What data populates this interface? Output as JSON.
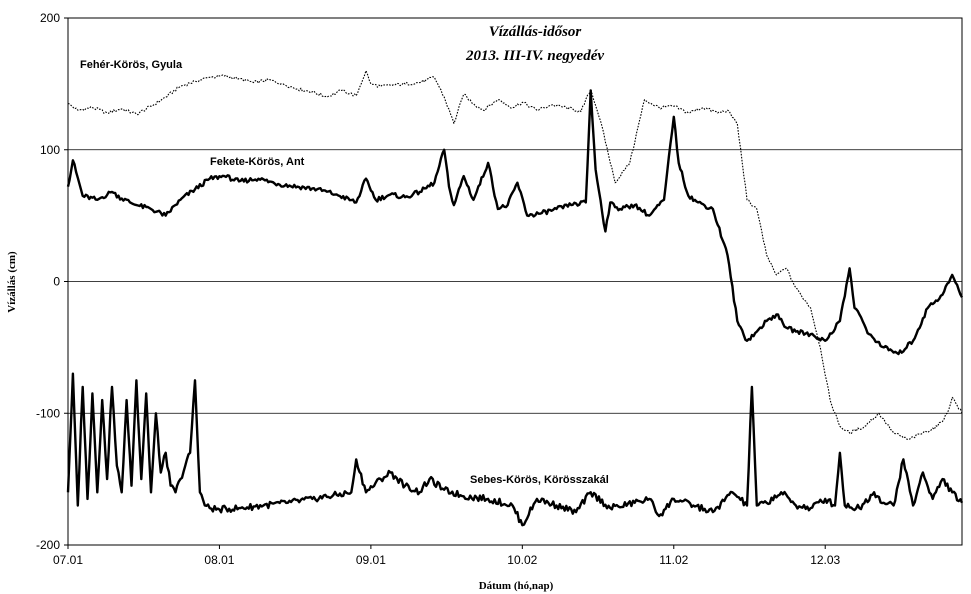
{
  "chart_data": {
    "type": "line",
    "title": "Vízállás-idősor",
    "subtitle": "2013. III-IV. negyedév",
    "xlabel": "Dátum (hó,nap)",
    "ylabel": "Vízállás (cm)",
    "ylim": [
      -200,
      200
    ],
    "yticks": [
      -200,
      -100,
      0,
      100,
      200
    ],
    "ytick_labels": [
      "-200",
      "-100",
      "0",
      "100",
      "200"
    ],
    "xlim": [
      "2013-07-01",
      "2013-12-31"
    ],
    "xticks": [
      "2013-07-01",
      "2013-08-01",
      "2013-09-01",
      "2013-10-02",
      "2013-11-02",
      "2013-12-03"
    ],
    "xtick_labels": [
      "07.01",
      "08.01",
      "09.01",
      "10.02",
      "11.02",
      "12.03"
    ],
    "grid": "horizontal",
    "series": [
      {
        "name": "Fehér-Körös, Gyula",
        "style": "dotted",
        "x": [
          "2013-07-01",
          "2013-07-03",
          "2013-07-06",
          "2013-07-09",
          "2013-07-12",
          "2013-07-15",
          "2013-07-18",
          "2013-07-21",
          "2013-07-24",
          "2013-07-27",
          "2013-07-30",
          "2013-08-02",
          "2013-08-05",
          "2013-08-08",
          "2013-08-11",
          "2013-08-14",
          "2013-08-17",
          "2013-08-20",
          "2013-08-23",
          "2013-08-26",
          "2013-08-29",
          "2013-08-31",
          "2013-09-01",
          "2013-09-03",
          "2013-09-05",
          "2013-09-08",
          "2013-09-11",
          "2013-09-14",
          "2013-09-16",
          "2013-09-18",
          "2013-09-20",
          "2013-09-22",
          "2013-09-24",
          "2013-09-27",
          "2013-09-30",
          "2013-10-02",
          "2013-10-05",
          "2013-10-08",
          "2013-10-11",
          "2013-10-14",
          "2013-10-16",
          "2013-10-18",
          "2013-10-21",
          "2013-10-24",
          "2013-10-27",
          "2013-10-30",
          "2013-11-02",
          "2013-11-05",
          "2013-11-08",
          "2013-11-11",
          "2013-11-13",
          "2013-11-15",
          "2013-11-17",
          "2013-11-19",
          "2013-11-21",
          "2013-11-23",
          "2013-11-25",
          "2013-11-27",
          "2013-11-30",
          "2013-12-02",
          "2013-12-04",
          "2013-12-06",
          "2013-12-08",
          "2013-12-11",
          "2013-12-14",
          "2013-12-17",
          "2013-12-20",
          "2013-12-23",
          "2013-12-26",
          "2013-12-28",
          "2013-12-29",
          "2013-12-31"
        ],
        "y": [
          135,
          130,
          132,
          128,
          131,
          127,
          133,
          140,
          148,
          152,
          155,
          156,
          154,
          151,
          153,
          150,
          146,
          144,
          140,
          145,
          141,
          160,
          150,
          148,
          149,
          150,
          151,
          155,
          140,
          120,
          142,
          135,
          130,
          138,
          132,
          136,
          130,
          134,
          132,
          129,
          146,
          122,
          75,
          90,
          138,
          132,
          133,
          128,
          132,
          128,
          130,
          120,
          62,
          55,
          20,
          5,
          10,
          -5,
          -20,
          -50,
          -90,
          -110,
          -115,
          -110,
          -100,
          -115,
          -120,
          -115,
          -110,
          -100,
          -88,
          -100
        ]
      },
      {
        "name": "Fekete-Körös, Ant",
        "style": "thick",
        "x": [
          "2013-07-01",
          "2013-07-02",
          "2013-07-04",
          "2013-07-07",
          "2013-07-10",
          "2013-07-12",
          "2013-07-15",
          "2013-07-18",
          "2013-07-21",
          "2013-07-24",
          "2013-07-27",
          "2013-07-30",
          "2013-08-02",
          "2013-08-05",
          "2013-08-09",
          "2013-08-13",
          "2013-08-17",
          "2013-08-21",
          "2013-08-25",
          "2013-08-29",
          "2013-08-31",
          "2013-09-02",
          "2013-09-05",
          "2013-09-08",
          "2013-09-11",
          "2013-09-14",
          "2013-09-16",
          "2013-09-17",
          "2013-09-18",
          "2013-09-20",
          "2013-09-22",
          "2013-09-25",
          "2013-09-27",
          "2013-09-29",
          "2013-10-01",
          "2013-10-03",
          "2013-10-06",
          "2013-10-09",
          "2013-10-12",
          "2013-10-15",
          "2013-10-16",
          "2013-10-17",
          "2013-10-19",
          "2013-10-20",
          "2013-10-22",
          "2013-10-25",
          "2013-10-28",
          "2013-10-31",
          "2013-11-02",
          "2013-11-03",
          "2013-11-05",
          "2013-11-07",
          "2013-11-10",
          "2013-11-13",
          "2013-11-15",
          "2013-11-17",
          "2013-11-19",
          "2013-11-21",
          "2013-11-23",
          "2013-11-25",
          "2013-11-27",
          "2013-11-30",
          "2013-12-03",
          "2013-12-06",
          "2013-12-08",
          "2013-12-09",
          "2013-12-10",
          "2013-12-12",
          "2013-12-15",
          "2013-12-18",
          "2013-12-21",
          "2013-12-24",
          "2013-12-27",
          "2013-12-29",
          "2013-12-31"
        ],
        "y": [
          72,
          92,
          65,
          62,
          68,
          63,
          58,
          55,
          50,
          62,
          70,
          78,
          80,
          76,
          78,
          74,
          72,
          70,
          66,
          60,
          78,
          62,
          66,
          64,
          68,
          75,
          100,
          72,
          58,
          80,
          62,
          90,
          55,
          58,
          75,
          50,
          52,
          55,
          58,
          60,
          145,
          85,
          38,
          60,
          55,
          58,
          50,
          62,
          125,
          90,
          65,
          60,
          55,
          20,
          -30,
          -45,
          -38,
          -30,
          -25,
          -35,
          -38,
          -40,
          -45,
          -30,
          10,
          -20,
          -25,
          -40,
          -50,
          -55,
          -45,
          -20,
          -10,
          5,
          -12
        ]
      },
      {
        "name": "Sebes-Körös, Körösszakál",
        "style": "thick",
        "x": [
          "2013-07-01",
          "2013-07-02",
          "2013-07-03",
          "2013-07-04",
          "2013-07-05",
          "2013-07-06",
          "2013-07-07",
          "2013-07-08",
          "2013-07-09",
          "2013-07-10",
          "2013-07-11",
          "2013-07-12",
          "2013-07-13",
          "2013-07-14",
          "2013-07-15",
          "2013-07-16",
          "2013-07-17",
          "2013-07-18",
          "2013-07-19",
          "2013-07-20",
          "2013-07-21",
          "2013-07-22",
          "2013-07-23",
          "2013-07-24",
          "2013-07-25",
          "2013-07-26",
          "2013-07-27",
          "2013-07-28",
          "2013-07-29",
          "2013-07-30",
          "2013-08-01",
          "2013-08-05",
          "2013-08-10",
          "2013-08-15",
          "2013-08-20",
          "2013-08-25",
          "2013-08-28",
          "2013-08-29",
          "2013-08-31",
          "2013-09-03",
          "2013-09-05",
          "2013-09-08",
          "2013-09-11",
          "2013-09-13",
          "2013-09-16",
          "2013-09-20",
          "2013-09-25",
          "2013-09-30",
          "2013-10-02",
          "2013-10-05",
          "2013-10-09",
          "2013-10-13",
          "2013-10-16",
          "2013-10-20",
          "2013-10-25",
          "2013-10-28",
          "2013-10-30",
          "2013-11-02",
          "2013-11-06",
          "2013-11-10",
          "2013-11-14",
          "2013-11-17",
          "2013-11-18",
          "2013-11-19",
          "2013-11-21",
          "2013-11-24",
          "2013-11-27",
          "2013-11-30",
          "2013-12-03",
          "2013-12-05",
          "2013-12-06",
          "2013-12-07",
          "2013-12-10",
          "2013-12-13",
          "2013-12-15",
          "2013-12-17",
          "2013-12-19",
          "2013-12-21",
          "2013-12-23",
          "2013-12-25",
          "2013-12-27",
          "2013-12-29",
          "2013-12-31"
        ],
        "y": [
          -160,
          -70,
          -170,
          -80,
          -165,
          -85,
          -160,
          -90,
          -150,
          -80,
          -140,
          -160,
          -90,
          -155,
          -75,
          -150,
          -85,
          -160,
          -100,
          -145,
          -130,
          -155,
          -160,
          -150,
          -140,
          -130,
          -75,
          -160,
          -170,
          -172,
          -173,
          -172,
          -170,
          -168,
          -165,
          -162,
          -160,
          -135,
          -160,
          -150,
          -145,
          -155,
          -160,
          -150,
          -158,
          -163,
          -165,
          -170,
          -185,
          -165,
          -170,
          -175,
          -160,
          -172,
          -168,
          -165,
          -178,
          -165,
          -170,
          -175,
          -160,
          -170,
          -80,
          -170,
          -168,
          -160,
          -170,
          -172,
          -165,
          -170,
          -130,
          -170,
          -172,
          -160,
          -168,
          -170,
          -135,
          -170,
          -145,
          -165,
          -150,
          -160,
          -168
        ]
      }
    ],
    "annotations": [
      "Fehér-Körös, Gyula",
      "Fekete-Körös, Ant",
      "Sebes-Körös,  Körösszakál"
    ]
  }
}
